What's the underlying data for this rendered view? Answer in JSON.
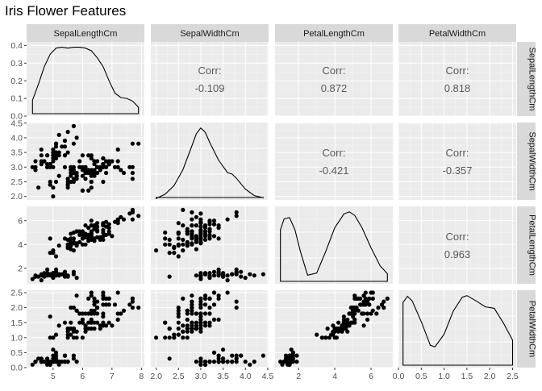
{
  "chart_data": {
    "type": "scatter",
    "title": "Iris Flower Features",
    "variables": [
      "SepalLengthCm",
      "SepalWidthCm",
      "PetalLengthCm",
      "PetalWidthCm"
    ],
    "corr_label": "Corr:",
    "correlations": [
      {
        "row": "SepalLengthCm",
        "col": "SepalWidthCm",
        "value": "-0.109"
      },
      {
        "row": "SepalLengthCm",
        "col": "PetalLengthCm",
        "value": "0.872"
      },
      {
        "row": "SepalLengthCm",
        "col": "PetalWidthCm",
        "value": "0.818"
      },
      {
        "row": "SepalWidthCm",
        "col": "PetalLengthCm",
        "value": "-0.421"
      },
      {
        "row": "SepalWidthCm",
        "col": "PetalWidthCm",
        "value": "-0.357"
      },
      {
        "row": "PetalLengthCm",
        "col": "PetalWidthCm",
        "value": "0.963"
      }
    ],
    "x_axes": [
      {
        "variable": "SepalLengthCm",
        "range": [
          4.1,
          8.1
        ],
        "ticks": [
          5,
          6,
          7,
          8
        ],
        "tick_labels": [
          "5",
          "6",
          "7",
          "8"
        ]
      },
      {
        "variable": "SepalWidthCm",
        "range": [
          1.88,
          4.52
        ],
        "ticks": [
          2.0,
          2.5,
          3.0,
          3.5,
          4.0,
          4.5
        ],
        "tick_labels": [
          "2.0",
          "2.5",
          "3.0",
          "3.5",
          "4.0",
          "4.5"
        ]
      },
      {
        "variable": "PetalLengthCm",
        "range": [
          0.7,
          7.2
        ],
        "ticks": [
          2,
          4,
          6
        ],
        "tick_labels": [
          "2",
          "4",
          "6"
        ]
      },
      {
        "variable": "PetalWidthCm",
        "range": [
          0.0,
          2.58
        ],
        "ticks": [
          0.0,
          0.5,
          1.0,
          1.5,
          2.0,
          2.5
        ],
        "tick_labels": [
          "0.0",
          "0.5",
          "1.0",
          "1.5",
          "2.0",
          "2.5"
        ]
      }
    ],
    "y_axes": [
      {
        "variable": "SepalLengthCm",
        "range": [
          0.0,
          0.42
        ],
        "ticks": [
          0.0,
          0.1,
          0.2,
          0.3,
          0.4
        ],
        "tick_labels": [
          "0.0",
          "0.1",
          "0.2",
          "0.3",
          "0.4"
        ]
      },
      {
        "variable": "SepalWidthCm",
        "range": [
          1.88,
          4.52
        ],
        "ticks": [
          2.0,
          2.5,
          3.0,
          3.5,
          4.0,
          4.5
        ],
        "tick_labels": [
          "2.0",
          "2.5",
          "3.0",
          "3.5",
          "4.0",
          "4.5"
        ]
      },
      {
        "variable": "PetalLengthCm",
        "range": [
          0.7,
          7.2
        ],
        "ticks": [
          2,
          4,
          6
        ],
        "tick_labels": [
          "2",
          "4",
          "6"
        ]
      },
      {
        "variable": "PetalWidthCm",
        "range": [
          0.0,
          2.58
        ],
        "ticks": [
          0.0,
          0.5,
          1.0,
          1.5,
          2.0,
          2.5
        ],
        "tick_labels": [
          "0.0",
          "0.5",
          "1.0",
          "1.5",
          "2.0",
          "2.5"
        ]
      }
    ],
    "densities": [
      {
        "variable": "SepalLengthCm",
        "x": [
          4.3,
          4.5,
          4.7,
          4.9,
          5.1,
          5.3,
          5.5,
          5.7,
          5.9,
          6.1,
          6.3,
          6.5,
          6.7,
          6.9,
          7.1,
          7.3,
          7.5,
          7.7,
          7.9
        ],
        "y": [
          0.09,
          0.18,
          0.28,
          0.35,
          0.385,
          0.39,
          0.385,
          0.39,
          0.39,
          0.385,
          0.37,
          0.33,
          0.28,
          0.2,
          0.13,
          0.105,
          0.1,
          0.085,
          0.05
        ]
      },
      {
        "variable": "SepalWidthCm",
        "x": [
          2.0,
          2.2,
          2.4,
          2.6,
          2.8,
          2.9,
          3.0,
          3.1,
          3.2,
          3.4,
          3.6,
          3.7,
          3.8,
          4.0,
          4.2,
          4.4
        ],
        "y": [
          0.02,
          0.08,
          0.2,
          0.42,
          0.75,
          0.92,
          1.0,
          0.94,
          0.8,
          0.55,
          0.38,
          0.36,
          0.3,
          0.15,
          0.06,
          0.03
        ]
      },
      {
        "variable": "PetalLengthCm",
        "x": [
          1.0,
          1.2,
          1.5,
          1.8,
          2.1,
          2.5,
          3.0,
          3.5,
          4.0,
          4.5,
          4.8,
          5.1,
          5.5,
          6.0,
          6.5,
          6.9
        ],
        "y": [
          0.75,
          0.9,
          0.92,
          0.75,
          0.45,
          0.12,
          0.15,
          0.45,
          0.78,
          0.97,
          1.0,
          0.95,
          0.78,
          0.5,
          0.25,
          0.14
        ]
      },
      {
        "variable": "PetalWidthCm",
        "x": [
          0.1,
          0.2,
          0.3,
          0.5,
          0.7,
          0.8,
          1.0,
          1.2,
          1.4,
          1.5,
          1.7,
          1.9,
          2.1,
          2.3,
          2.5
        ],
        "y": [
          0.88,
          0.96,
          0.9,
          0.62,
          0.3,
          0.28,
          0.45,
          0.76,
          0.95,
          0.97,
          0.9,
          0.82,
          0.8,
          0.6,
          0.37
        ]
      }
    ],
    "observations": {
      "columns": [
        "SepalLengthCm",
        "SepalWidthCm",
        "PetalLengthCm",
        "PetalWidthCm"
      ],
      "rows": [
        [
          5.1,
          3.5,
          1.4,
          0.2
        ],
        [
          4.9,
          3.0,
          1.4,
          0.2
        ],
        [
          4.7,
          3.2,
          1.3,
          0.2
        ],
        [
          4.6,
          3.1,
          1.5,
          0.2
        ],
        [
          5.0,
          3.6,
          1.4,
          0.2
        ],
        [
          5.4,
          3.9,
          1.7,
          0.4
        ],
        [
          4.6,
          3.4,
          1.4,
          0.3
        ],
        [
          5.0,
          3.4,
          1.5,
          0.2
        ],
        [
          4.4,
          2.9,
          1.4,
          0.2
        ],
        [
          4.9,
          3.1,
          1.5,
          0.1
        ],
        [
          5.4,
          3.7,
          1.5,
          0.2
        ],
        [
          4.8,
          3.4,
          1.6,
          0.2
        ],
        [
          4.8,
          3.0,
          1.4,
          0.1
        ],
        [
          4.3,
          3.0,
          1.1,
          0.1
        ],
        [
          5.8,
          4.0,
          1.2,
          0.2
        ],
        [
          5.7,
          4.4,
          1.5,
          0.4
        ],
        [
          5.4,
          3.9,
          1.3,
          0.4
        ],
        [
          5.1,
          3.5,
          1.4,
          0.3
        ],
        [
          5.7,
          3.8,
          1.7,
          0.3
        ],
        [
          5.1,
          3.8,
          1.5,
          0.3
        ],
        [
          5.4,
          3.4,
          1.7,
          0.2
        ],
        [
          5.1,
          3.7,
          1.5,
          0.4
        ],
        [
          4.6,
          3.6,
          1.0,
          0.2
        ],
        [
          5.1,
          3.3,
          1.7,
          0.5
        ],
        [
          4.8,
          3.4,
          1.9,
          0.2
        ],
        [
          5.0,
          3.0,
          1.6,
          0.2
        ],
        [
          5.0,
          3.4,
          1.6,
          0.4
        ],
        [
          5.2,
          3.5,
          1.5,
          0.2
        ],
        [
          5.2,
          3.4,
          1.4,
          0.2
        ],
        [
          4.7,
          3.2,
          1.6,
          0.2
        ],
        [
          4.8,
          3.1,
          1.6,
          0.2
        ],
        [
          5.4,
          3.4,
          1.5,
          0.4
        ],
        [
          5.2,
          4.1,
          1.5,
          0.1
        ],
        [
          5.5,
          4.2,
          1.4,
          0.2
        ],
        [
          4.9,
          3.1,
          1.5,
          0.1
        ],
        [
          5.0,
          3.2,
          1.2,
          0.2
        ],
        [
          5.5,
          3.5,
          1.3,
          0.2
        ],
        [
          4.9,
          3.1,
          1.5,
          0.1
        ],
        [
          4.4,
          3.0,
          1.3,
          0.2
        ],
        [
          5.1,
          3.4,
          1.5,
          0.2
        ],
        [
          5.0,
          3.5,
          1.3,
          0.3
        ],
        [
          4.5,
          2.3,
          1.3,
          0.3
        ],
        [
          4.4,
          3.2,
          1.3,
          0.2
        ],
        [
          5.0,
          3.5,
          1.6,
          0.6
        ],
        [
          5.1,
          3.8,
          1.9,
          0.4
        ],
        [
          4.8,
          3.0,
          1.4,
          0.3
        ],
        [
          5.1,
          3.8,
          1.6,
          0.2
        ],
        [
          4.6,
          3.2,
          1.4,
          0.2
        ],
        [
          5.3,
          3.7,
          1.5,
          0.2
        ],
        [
          5.0,
          3.3,
          1.4,
          0.2
        ],
        [
          7.0,
          3.2,
          4.7,
          1.4
        ],
        [
          6.4,
          3.2,
          4.5,
          1.5
        ],
        [
          6.9,
          3.1,
          4.9,
          1.5
        ],
        [
          5.5,
          2.3,
          4.0,
          1.3
        ],
        [
          6.5,
          2.8,
          4.6,
          1.5
        ],
        [
          5.7,
          2.8,
          4.5,
          1.3
        ],
        [
          6.3,
          3.3,
          4.7,
          1.6
        ],
        [
          4.9,
          2.4,
          3.3,
          1.0
        ],
        [
          6.6,
          2.9,
          4.6,
          1.3
        ],
        [
          5.2,
          2.7,
          3.9,
          1.4
        ],
        [
          5.0,
          2.0,
          3.5,
          1.0
        ],
        [
          5.9,
          3.0,
          4.2,
          1.5
        ],
        [
          6.0,
          2.2,
          4.0,
          1.0
        ],
        [
          6.1,
          2.9,
          4.7,
          1.4
        ],
        [
          5.6,
          2.9,
          3.6,
          1.3
        ],
        [
          6.7,
          3.1,
          4.4,
          1.4
        ],
        [
          5.6,
          3.0,
          4.5,
          1.5
        ],
        [
          5.8,
          2.7,
          4.1,
          1.0
        ],
        [
          6.2,
          2.2,
          4.5,
          1.5
        ],
        [
          5.6,
          2.5,
          3.9,
          1.1
        ],
        [
          5.9,
          3.2,
          4.8,
          1.8
        ],
        [
          6.1,
          2.8,
          4.0,
          1.3
        ],
        [
          6.3,
          2.5,
          4.9,
          1.5
        ],
        [
          6.1,
          2.8,
          4.7,
          1.2
        ],
        [
          6.4,
          2.9,
          4.3,
          1.3
        ],
        [
          6.6,
          3.0,
          4.4,
          1.4
        ],
        [
          6.8,
          2.8,
          4.8,
          1.4
        ],
        [
          6.7,
          3.0,
          5.0,
          1.7
        ],
        [
          6.0,
          2.9,
          4.5,
          1.5
        ],
        [
          5.7,
          2.6,
          3.5,
          1.0
        ],
        [
          5.5,
          2.4,
          3.8,
          1.1
        ],
        [
          5.5,
          2.4,
          3.7,
          1.0
        ],
        [
          5.8,
          2.7,
          3.9,
          1.2
        ],
        [
          6.0,
          2.7,
          5.1,
          1.6
        ],
        [
          5.4,
          3.0,
          4.5,
          1.5
        ],
        [
          6.0,
          3.4,
          4.5,
          1.6
        ],
        [
          6.7,
          3.1,
          4.7,
          1.5
        ],
        [
          6.3,
          2.3,
          4.4,
          1.3
        ],
        [
          5.6,
          3.0,
          4.1,
          1.3
        ],
        [
          5.5,
          2.5,
          4.0,
          1.3
        ],
        [
          5.5,
          2.6,
          4.4,
          1.2
        ],
        [
          6.1,
          3.0,
          4.6,
          1.4
        ],
        [
          5.8,
          2.6,
          4.0,
          1.2
        ],
        [
          5.0,
          2.3,
          3.3,
          1.0
        ],
        [
          5.6,
          2.7,
          4.2,
          1.3
        ],
        [
          5.7,
          3.0,
          4.2,
          1.2
        ],
        [
          5.7,
          2.9,
          4.2,
          1.3
        ],
        [
          6.2,
          2.9,
          4.3,
          1.3
        ],
        [
          5.1,
          2.5,
          3.0,
          1.1
        ],
        [
          5.7,
          2.8,
          4.1,
          1.3
        ],
        [
          6.3,
          3.3,
          6.0,
          2.5
        ],
        [
          5.8,
          2.7,
          5.1,
          1.9
        ],
        [
          7.1,
          3.0,
          5.9,
          2.1
        ],
        [
          6.3,
          2.9,
          5.6,
          1.8
        ],
        [
          6.5,
          3.0,
          5.8,
          2.2
        ],
        [
          7.6,
          3.0,
          6.6,
          2.1
        ],
        [
          4.9,
          2.5,
          4.5,
          1.7
        ],
        [
          7.3,
          2.9,
          6.3,
          1.8
        ],
        [
          6.7,
          2.5,
          5.8,
          1.8
        ],
        [
          7.2,
          3.6,
          6.1,
          2.5
        ],
        [
          6.5,
          3.2,
          5.1,
          2.0
        ],
        [
          6.4,
          2.7,
          5.3,
          1.9
        ],
        [
          6.8,
          3.0,
          5.5,
          2.1
        ],
        [
          5.7,
          2.5,
          5.0,
          2.0
        ],
        [
          5.8,
          2.8,
          5.1,
          2.4
        ],
        [
          6.4,
          3.2,
          5.3,
          2.3
        ],
        [
          6.5,
          3.0,
          5.5,
          1.8
        ],
        [
          7.7,
          3.8,
          6.7,
          2.2
        ],
        [
          7.7,
          2.6,
          6.9,
          2.3
        ],
        [
          6.0,
          2.2,
          5.0,
          1.5
        ],
        [
          6.9,
          3.2,
          5.7,
          2.3
        ],
        [
          5.6,
          2.8,
          4.9,
          2.0
        ],
        [
          7.7,
          2.8,
          6.7,
          2.0
        ],
        [
          6.3,
          2.7,
          4.9,
          1.8
        ],
        [
          6.7,
          3.3,
          5.7,
          2.1
        ],
        [
          7.2,
          3.2,
          6.0,
          1.8
        ],
        [
          6.2,
          2.8,
          4.8,
          1.8
        ],
        [
          6.1,
          3.0,
          4.9,
          1.8
        ],
        [
          6.4,
          2.8,
          5.6,
          2.1
        ],
        [
          7.2,
          3.0,
          5.8,
          1.6
        ],
        [
          7.4,
          2.8,
          6.1,
          1.9
        ],
        [
          7.9,
          3.8,
          6.4,
          2.0
        ],
        [
          6.4,
          2.8,
          5.6,
          2.2
        ],
        [
          6.3,
          2.8,
          5.1,
          1.5
        ],
        [
          6.1,
          2.6,
          5.6,
          1.4
        ],
        [
          7.7,
          3.0,
          6.1,
          2.3
        ],
        [
          6.3,
          3.4,
          5.6,
          2.4
        ],
        [
          6.4,
          3.1,
          5.5,
          1.8
        ],
        [
          6.0,
          3.0,
          4.8,
          1.8
        ],
        [
          6.9,
          3.1,
          5.4,
          2.1
        ],
        [
          6.7,
          3.1,
          5.6,
          2.4
        ],
        [
          6.9,
          3.1,
          5.1,
          2.3
        ],
        [
          5.8,
          2.7,
          5.1,
          1.9
        ],
        [
          6.8,
          3.2,
          5.9,
          2.3
        ],
        [
          6.7,
          3.3,
          5.7,
          2.5
        ],
        [
          6.7,
          3.0,
          5.2,
          2.3
        ],
        [
          6.3,
          2.5,
          5.0,
          1.9
        ],
        [
          6.5,
          3.0,
          5.2,
          2.0
        ],
        [
          6.2,
          3.4,
          5.4,
          2.3
        ],
        [
          5.9,
          3.0,
          5.1,
          1.8
        ]
      ]
    },
    "colors": {
      "panel": "#ebebeb",
      "grid_major": "#ffffff",
      "grid_minor": "#f5f5f5",
      "strip": "#d9d9d9",
      "point": "#000000",
      "corr_text": "#595959",
      "axis_text": "#4d4d4d",
      "strip_text": "#1a1a1a"
    }
  }
}
